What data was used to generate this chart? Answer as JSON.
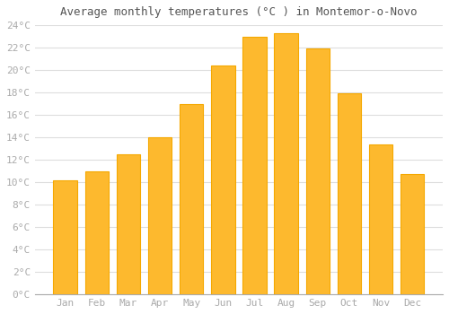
{
  "title": "Average monthly temperatures (°C ) in Montemor-o-Novo",
  "months": [
    "Jan",
    "Feb",
    "Mar",
    "Apr",
    "May",
    "Jun",
    "Jul",
    "Aug",
    "Sep",
    "Oct",
    "Nov",
    "Dec"
  ],
  "temperatures": [
    10.2,
    11.0,
    12.5,
    14.0,
    17.0,
    20.4,
    23.0,
    23.3,
    21.9,
    17.9,
    13.4,
    10.7
  ],
  "bar_color": "#FDB92E",
  "bar_edge_color": "#F5A800",
  "ylim": [
    0,
    24
  ],
  "yticks": [
    0,
    2,
    4,
    6,
    8,
    10,
    12,
    14,
    16,
    18,
    20,
    22,
    24
  ],
  "plot_bg_color": "#FFFFFF",
  "fig_bg_color": "#FFFFFF",
  "grid_color": "#DDDDDD",
  "title_fontsize": 9,
  "tick_fontsize": 8,
  "tick_font_color": "#AAAAAA",
  "title_color": "#555555",
  "bar_width": 0.75
}
